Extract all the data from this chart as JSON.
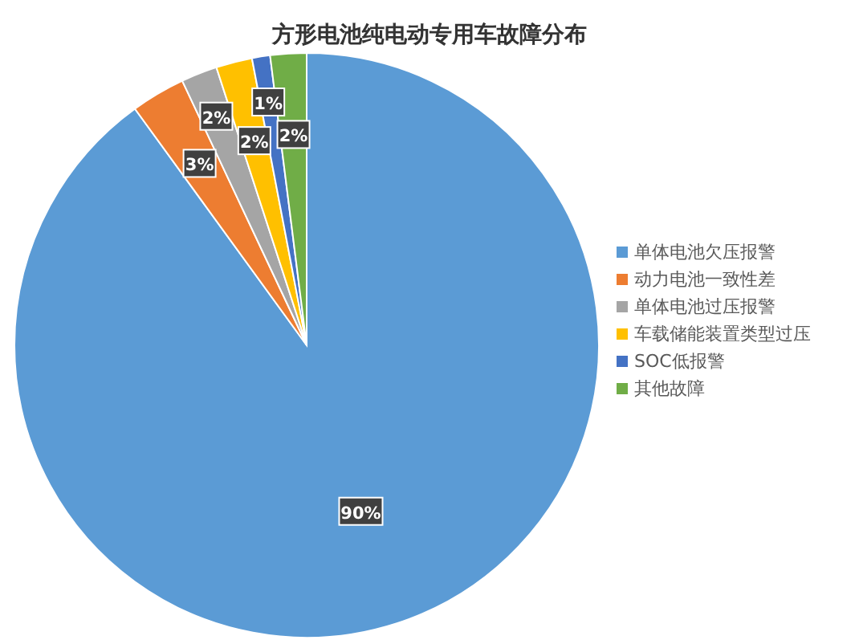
{
  "chart_data": {
    "type": "pie",
    "title": "方形电池纯电动专用车故障分布",
    "categories": [
      "单体电池欠压报警",
      "动力电池一致性差",
      "单体电池过压报警",
      "车载储能装置类型过压",
      "SOC低报警",
      "其他故障"
    ],
    "values": [
      90,
      3,
      2,
      2,
      1,
      2
    ],
    "colors": [
      "#5b9bd5",
      "#ed7d31",
      "#a5a5a5",
      "#ffc000",
      "#4472c4",
      "#70ad47"
    ],
    "value_labels": [
      "90%",
      "3%",
      "2%",
      "2%",
      "1%",
      "2%"
    ],
    "legend": "right"
  }
}
